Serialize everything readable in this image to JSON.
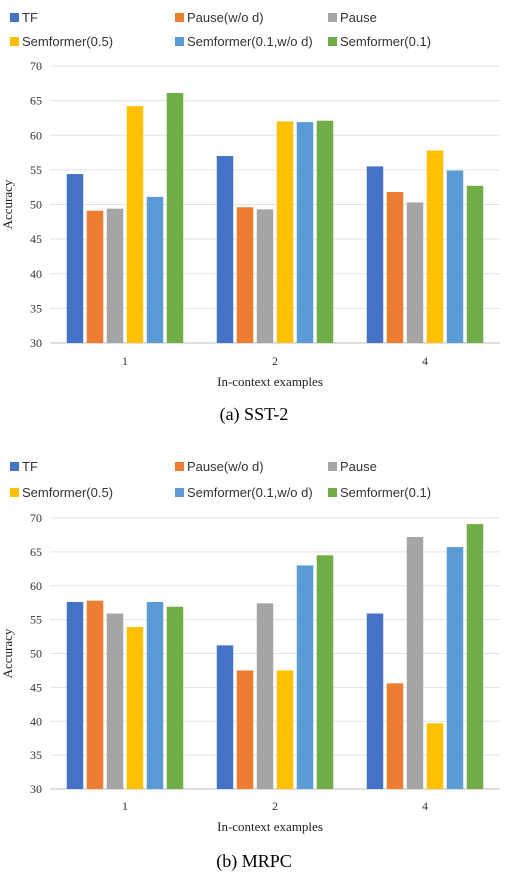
{
  "chart_data": [
    {
      "type": "bar",
      "caption": "(a) SST-2",
      "xlabel": "In-context examples",
      "ylabel": "Accuracy",
      "ylim": [
        30,
        70
      ],
      "yticks": [
        30,
        35,
        40,
        45,
        50,
        55,
        60,
        65,
        70
      ],
      "grid": true,
      "legend_position": "top",
      "categories": [
        "1",
        "2",
        "4"
      ],
      "series": [
        {
          "name": "TF",
          "color": "#4472C4",
          "values": [
            54.4,
            57.0,
            55.5
          ]
        },
        {
          "name": "Pause(w/o d)",
          "color": "#ED7D31",
          "values": [
            49.1,
            49.6,
            51.8
          ]
        },
        {
          "name": "Pause",
          "color": "#A5A5A5",
          "values": [
            49.4,
            49.3,
            50.3
          ]
        },
        {
          "name": "Semformer(0.5)",
          "color": "#FFC000",
          "values": [
            64.2,
            62.0,
            57.8
          ]
        },
        {
          "name": "Semformer(0.1,w/o d)",
          "color": "#5B9BD5",
          "values": [
            51.1,
            61.9,
            54.9
          ]
        },
        {
          "name": "Semformer(0.1)",
          "color": "#70AD47",
          "values": [
            66.1,
            62.1,
            52.7
          ]
        }
      ]
    },
    {
      "type": "bar",
      "caption": "(b) MRPC",
      "xlabel": "In-context examples",
      "ylabel": "Accuracy",
      "ylim": [
        30,
        70
      ],
      "yticks": [
        30,
        35,
        40,
        45,
        50,
        55,
        60,
        65,
        70
      ],
      "grid": true,
      "legend_position": "top",
      "categories": [
        "1",
        "2",
        "4"
      ],
      "series": [
        {
          "name": "TF",
          "color": "#4472C4",
          "values": [
            57.6,
            51.2,
            55.9
          ]
        },
        {
          "name": "Pause(w/o d)",
          "color": "#ED7D31",
          "values": [
            57.8,
            47.5,
            45.6
          ]
        },
        {
          "name": "Pause",
          "color": "#A5A5A5",
          "values": [
            55.9,
            57.4,
            67.2
          ]
        },
        {
          "name": "Semformer(0.5)",
          "color": "#FFC000",
          "values": [
            53.9,
            47.5,
            39.7
          ]
        },
        {
          "name": "Semformer(0.1,w/o d)",
          "color": "#5B9BD5",
          "values": [
            57.6,
            63.0,
            65.7
          ]
        },
        {
          "name": "Semformer(0.1)",
          "color": "#70AD47",
          "values": [
            56.9,
            64.5,
            69.1
          ]
        }
      ]
    }
  ]
}
